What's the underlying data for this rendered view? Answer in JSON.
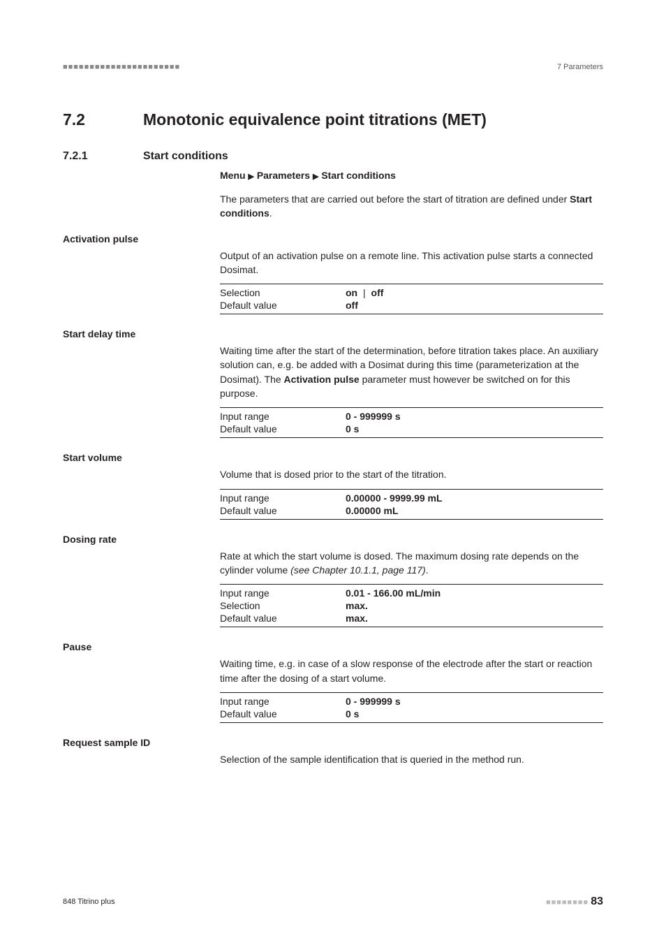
{
  "header": {
    "left_dots": "■■■■■■■■■■■■■■■■■■■■■■",
    "right": "7 Parameters"
  },
  "section": {
    "number": "7.2",
    "title": "Monotonic equivalence point titrations (MET)"
  },
  "subsection": {
    "number": "7.2.1",
    "title": "Start conditions",
    "menu_path_prefix": "Menu",
    "menu_path_mid": "Parameters",
    "menu_path_end": "Start conditions",
    "intro_a": "The parameters that are carried out before the start of titration are defined under ",
    "intro_b": "Start conditions",
    "intro_c": "."
  },
  "params": {
    "activation_pulse": {
      "label": "Activation pulse",
      "desc": "Output of an activation pulse on a remote line. This activation pulse starts a connected Dosimat.",
      "rows": [
        {
          "key": "Selection",
          "val_a": "on",
          "val_sep": " | ",
          "val_b": "off"
        },
        {
          "key": "Default value",
          "val_a": "off"
        }
      ]
    },
    "start_delay": {
      "label": "Start delay time",
      "desc_a": "Waiting time after the start of the determination, before titration takes place. An auxiliary solution can, e.g. be added with a Dosimat during this time (parameterization at the Dosimat). The ",
      "desc_b": "Activation pulse",
      "desc_c": " parameter must however be switched on for this purpose.",
      "rows": [
        {
          "key": "Input range",
          "val_a": "0 - 999999 s"
        },
        {
          "key": "Default value",
          "val_a": "0 s"
        }
      ]
    },
    "start_volume": {
      "label": "Start volume",
      "desc": "Volume that is dosed prior to the start of the titration.",
      "rows": [
        {
          "key": "Input range",
          "val_a": "0.00000 - 9999.99 mL"
        },
        {
          "key": "Default value",
          "val_a": "0.00000 mL"
        }
      ]
    },
    "dosing_rate": {
      "label": "Dosing rate",
      "desc_a": "Rate at which the start volume is dosed. The maximum dosing rate depends on the cylinder volume ",
      "desc_ref": "(see Chapter 10.1.1, page 117)",
      "desc_c": ".",
      "rows": [
        {
          "key": "Input range",
          "val_a": "0.01 - 166.00 mL/min"
        },
        {
          "key": "Selection",
          "val_a": "max."
        },
        {
          "key": "Default value",
          "val_a": "max."
        }
      ]
    },
    "pause": {
      "label": "Pause",
      "desc": "Waiting time, e.g. in case of a slow response of the electrode after the start or reaction time after the dosing of a start volume.",
      "rows": [
        {
          "key": "Input range",
          "val_a": "0 - 999999 s"
        },
        {
          "key": "Default value",
          "val_a": "0 s"
        }
      ]
    },
    "request_sample_id": {
      "label": "Request sample ID",
      "desc": "Selection of the sample identification that is queried in the method run."
    }
  },
  "footer": {
    "product": "848 Titrino plus",
    "dots": "■■■■■■■■",
    "page": "83"
  },
  "glyphs": {
    "arrow": "▶"
  }
}
